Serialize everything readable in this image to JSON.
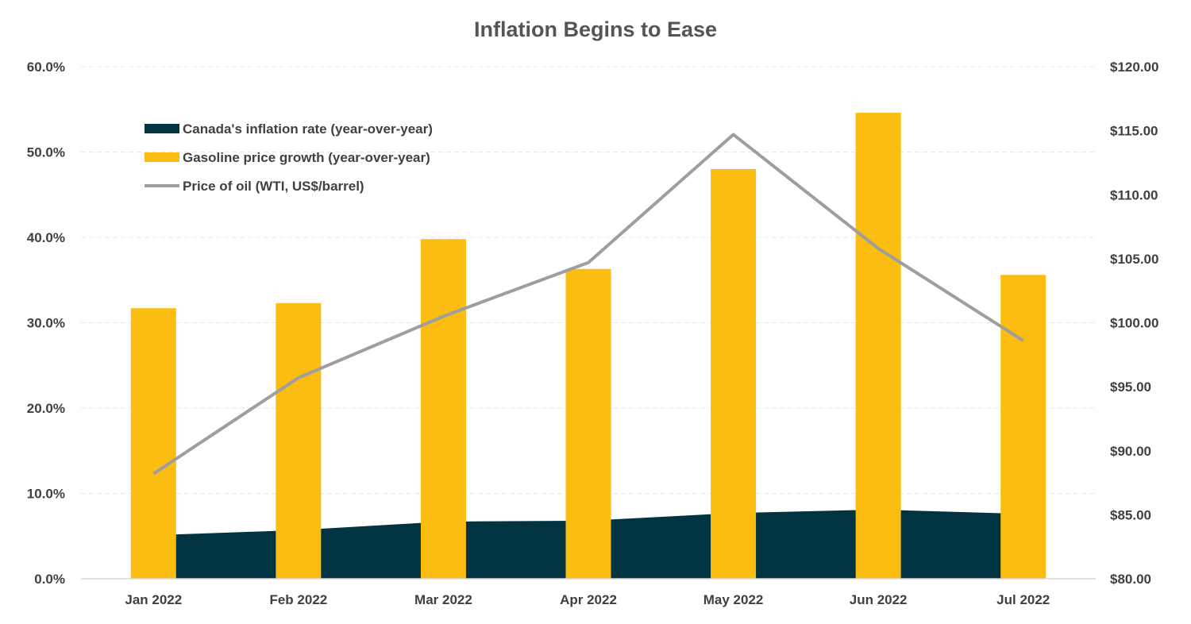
{
  "chart_data": {
    "type": "bar",
    "title": "Inflation Begins to Ease",
    "categories": [
      "Jan 2022",
      "Feb 2022",
      "Mar 2022",
      "Apr 2022",
      "May 2022",
      "Jun 2022",
      "Jul 2022"
    ],
    "series": [
      {
        "name": "Canada's inflation rate (year-over-year)",
        "type": "area",
        "axis": "left",
        "color": "#013440",
        "values": [
          5.1,
          5.7,
          6.7,
          6.8,
          7.7,
          8.1,
          7.6
        ]
      },
      {
        "name": "Gasoline price growth (year-over-year)",
        "type": "bar",
        "axis": "left",
        "color": "#FBBD12",
        "values": [
          31.7,
          32.3,
          39.8,
          36.3,
          48.0,
          54.6,
          35.6
        ]
      },
      {
        "name": "Price of oil (WTI, US$/barrel)",
        "type": "line",
        "axis": "right",
        "color": "#9E9E9E",
        "values": [
          88.2,
          95.7,
          100.5,
          104.7,
          114.7,
          105.8,
          98.6
        ]
      }
    ],
    "y_left": {
      "ylim": [
        0,
        60
      ],
      "ticks": [
        "0.0%",
        "10.0%",
        "20.0%",
        "30.0%",
        "40.0%",
        "50.0%",
        "60.0%"
      ],
      "tick_values": [
        0,
        10,
        20,
        30,
        40,
        50,
        60
      ]
    },
    "y_right": {
      "ylim": [
        80,
        120
      ],
      "ticks": [
        "$80.00",
        "$85.00",
        "$90.00",
        "$95.00",
        "$100.00",
        "$105.00",
        "$110.00",
        "$115.00",
        "$120.00"
      ],
      "tick_values": [
        80,
        85,
        90,
        95,
        100,
        105,
        110,
        115,
        120
      ]
    },
    "grid": true,
    "legend_position": "top-left",
    "colors": {
      "gridline": "#E8E8E8",
      "axis_line": "#D9D9D9"
    }
  }
}
